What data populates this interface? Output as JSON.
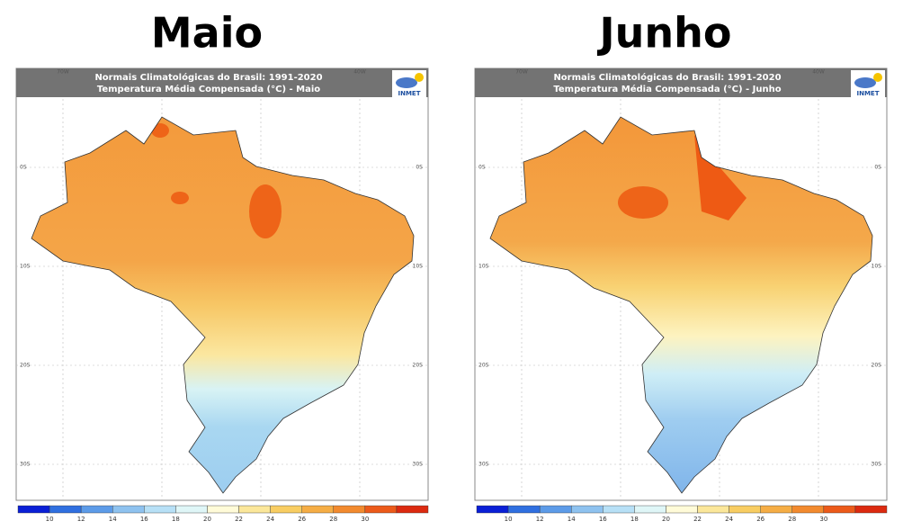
{
  "panels": [
    {
      "title": "Maio",
      "header": [
        "Normais Climatológicas do Brasil: 1991-2020",
        "Temperatura Média Compensada (°C) - Maio"
      ],
      "logo": "INMET"
    },
    {
      "title": "Junho",
      "header": [
        "Normais Climatológicas do Brasil: 1991-2020",
        "Temperatura Média Compensada (°C) - Junho"
      ],
      "logo": "INMET"
    }
  ],
  "lon_labels": [
    "70W",
    "40W"
  ],
  "lat_labels": [
    "0S",
    "10S",
    "20S",
    "30S"
  ],
  "colorbar": {
    "labels": [
      "10",
      "12",
      "14",
      "16",
      "18",
      "20",
      "22",
      "24",
      "26",
      "28",
      "30"
    ],
    "colors": [
      "#0a1fd6",
      "#2f6fe0",
      "#5c9be8",
      "#8ec2ef",
      "#b7e0f6",
      "#dff6f7",
      "#fffbd8",
      "#fbe79a",
      "#f8cd62",
      "#f5ad45",
      "#f28a2e",
      "#ec5a1a",
      "#dc2a10"
    ]
  }
}
